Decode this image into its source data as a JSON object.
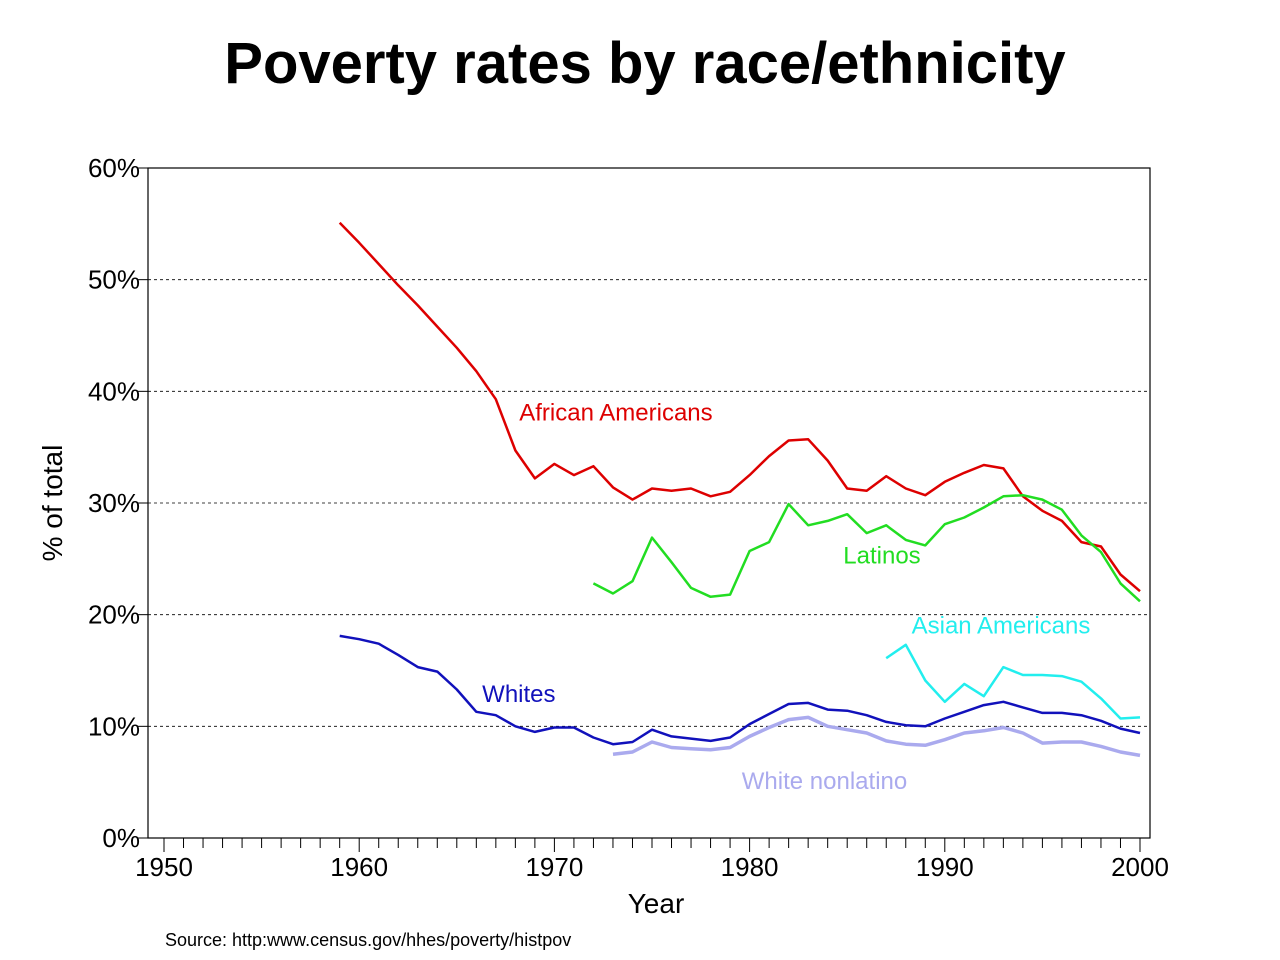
{
  "title": "Poverty rates by race/ethnicity",
  "source": "Source:  http:www.census.gov/hhes/poverty/histpov",
  "chart_data": {
    "type": "line",
    "xlabel": "Year",
    "ylabel": "% of total",
    "xlim": [
      1950,
      2000
    ],
    "ylim": [
      0,
      60
    ],
    "x_ticks": [
      1950,
      1960,
      1970,
      1980,
      1990,
      2000
    ],
    "x_tick_labels": [
      "1950",
      "1960",
      "1970",
      "1980",
      "1990",
      "2000"
    ],
    "y_ticks": [
      0,
      10,
      20,
      30,
      40,
      50,
      60
    ],
    "y_tick_labels": [
      "0%",
      "10%",
      "20%",
      "30%",
      "40%",
      "50%",
      "60%"
    ],
    "grid": "horizontal dashed",
    "legend": "inline labels",
    "series": [
      {
        "name": "African Americans",
        "color": "#dd0000",
        "label_year": 1968.2,
        "label_value": 37.4,
        "x": [
          1959,
          1960,
          1961,
          1962,
          1963,
          1964,
          1965,
          1966,
          1967,
          1968,
          1969,
          1970,
          1971,
          1972,
          1973,
          1974,
          1975,
          1976,
          1977,
          1978,
          1979,
          1980,
          1981,
          1982,
          1983,
          1984,
          1985,
          1986,
          1987,
          1988,
          1989,
          1990,
          1991,
          1992,
          1993,
          1994,
          1995,
          1996,
          1997,
          1998,
          1999,
          2000
        ],
        "y": [
          55.1,
          53.3,
          51.4,
          49.5,
          47.7,
          45.8,
          43.9,
          41.8,
          39.3,
          34.7,
          32.2,
          33.5,
          32.5,
          33.3,
          31.4,
          30.3,
          31.3,
          31.1,
          31.3,
          30.6,
          31.0,
          32.5,
          34.2,
          35.6,
          35.7,
          33.8,
          31.3,
          31.1,
          32.4,
          31.3,
          30.7,
          31.9,
          32.7,
          33.4,
          33.1,
          30.6,
          29.3,
          28.4,
          26.5,
          26.1,
          23.6,
          22.1
        ]
      },
      {
        "name": "Latinos",
        "color": "#22dd22",
        "label_year": 1984.8,
        "label_value": 24.6,
        "x": [
          1972,
          1973,
          1974,
          1975,
          1976,
          1977,
          1978,
          1979,
          1980,
          1981,
          1982,
          1983,
          1984,
          1985,
          1986,
          1987,
          1988,
          1989,
          1990,
          1991,
          1992,
          1993,
          1994,
          1995,
          1996,
          1997,
          1998,
          1999,
          2000
        ],
        "y": [
          22.8,
          21.9,
          23.0,
          26.9,
          24.7,
          22.4,
          21.6,
          21.8,
          25.7,
          26.5,
          29.9,
          28.0,
          28.4,
          29.0,
          27.3,
          28.0,
          26.7,
          26.2,
          28.1,
          28.7,
          29.6,
          30.6,
          30.7,
          30.3,
          29.4,
          27.1,
          25.6,
          22.8,
          21.2
        ]
      },
      {
        "name": "Asian Americans",
        "color": "#22eeee",
        "label_year": 1988.3,
        "label_value": 18.3,
        "x": [
          1987,
          1988,
          1989,
          1990,
          1991,
          1992,
          1993,
          1994,
          1995,
          1996,
          1997,
          1998,
          1999,
          2000
        ],
        "y": [
          16.1,
          17.3,
          14.1,
          12.2,
          13.8,
          12.7,
          15.3,
          14.6,
          14.6,
          14.5,
          14.0,
          12.5,
          10.7,
          10.8
        ]
      },
      {
        "name": "Whites",
        "color": "#1111bb",
        "label_year": 1966.3,
        "label_value": 12.2,
        "x": [
          1959,
          1960,
          1961,
          1962,
          1963,
          1964,
          1965,
          1966,
          1967,
          1968,
          1969,
          1970,
          1971,
          1972,
          1973,
          1974,
          1975,
          1976,
          1977,
          1978,
          1979,
          1980,
          1981,
          1982,
          1983,
          1984,
          1985,
          1986,
          1987,
          1988,
          1989,
          1990,
          1991,
          1992,
          1993,
          1994,
          1995,
          1996,
          1997,
          1998,
          1999,
          2000
        ],
        "y": [
          18.1,
          17.8,
          17.4,
          16.4,
          15.3,
          14.9,
          13.3,
          11.3,
          11.0,
          10.0,
          9.5,
          9.9,
          9.9,
          9.0,
          8.4,
          8.6,
          9.7,
          9.1,
          8.9,
          8.7,
          9.0,
          10.2,
          11.1,
          12.0,
          12.1,
          11.5,
          11.4,
          11.0,
          10.4,
          10.1,
          10.0,
          10.7,
          11.3,
          11.9,
          12.2,
          11.7,
          11.2,
          11.2,
          11.0,
          10.5,
          9.8,
          9.4
        ]
      },
      {
        "name": "White nonlatino",
        "color": "#aaaaee",
        "label_year": 1979.6,
        "label_value": 4.4,
        "x": [
          1973,
          1974,
          1975,
          1976,
          1977,
          1978,
          1979,
          1980,
          1981,
          1982,
          1983,
          1984,
          1985,
          1986,
          1987,
          1988,
          1989,
          1990,
          1991,
          1992,
          1993,
          1994,
          1995,
          1996,
          1997,
          1998,
          1999,
          2000
        ],
        "y": [
          7.5,
          7.7,
          8.6,
          8.1,
          8.0,
          7.9,
          8.1,
          9.1,
          9.9,
          10.6,
          10.8,
          10.0,
          9.7,
          9.4,
          8.7,
          8.4,
          8.3,
          8.8,
          9.4,
          9.6,
          9.9,
          9.4,
          8.5,
          8.6,
          8.6,
          8.2,
          7.7,
          7.4
        ]
      }
    ]
  }
}
